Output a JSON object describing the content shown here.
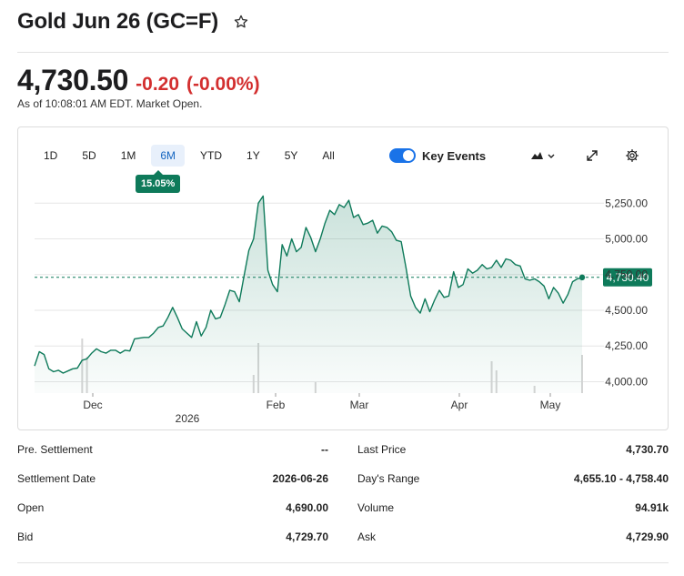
{
  "header": {
    "title": "Gold Jun 26 (GC=F)"
  },
  "quote": {
    "price": "4,730.50",
    "change": "-0.20",
    "change_pct": "(-0.00%)",
    "as_of": "As of 10:08:01 AM EDT. Market Open."
  },
  "chart": {
    "ranges": [
      "1D",
      "5D",
      "1M",
      "6M",
      "YTD",
      "1Y",
      "5Y",
      "All"
    ],
    "active_range": "6M",
    "performance_badge": "15.05%",
    "key_events_label": "Key Events",
    "key_events_on": true,
    "current_price_label": "4,730.40",
    "year_label": "2026",
    "colors": {
      "line": "#0e7a5a",
      "badge": "#0e7a5a",
      "toggle": "#1a73e8",
      "negative": "#d32f2f"
    }
  },
  "chart_data": {
    "type": "area",
    "title": "",
    "xlabel": "",
    "ylabel": "",
    "x_ticks": [
      "Dec",
      "Feb",
      "Mar",
      "Apr",
      "May"
    ],
    "y_ticks": [
      "5,250.00",
      "5,000.00",
      "4,750.00",
      "4,500.00",
      "4,250.00",
      "4,000.00"
    ],
    "ylim": [
      3920,
      5360
    ],
    "current_value": 4730.4,
    "series": [
      {
        "values": [
          4110,
          4210,
          4190,
          4090,
          4070,
          4080,
          4060,
          4075,
          4090,
          4095,
          4150,
          4160,
          4200,
          4230,
          4210,
          4200,
          4220,
          4220,
          4200,
          4220,
          4215,
          4300,
          4305,
          4310,
          4310,
          4340,
          4380,
          4390,
          4450,
          4520,
          4450,
          4370,
          4340,
          4310,
          4420,
          4320,
          4380,
          4500,
          4440,
          4450,
          4540,
          4640,
          4630,
          4560,
          4740,
          4920,
          5000,
          5250,
          5300,
          4780,
          4680,
          4630,
          4960,
          4880,
          5000,
          4910,
          4940,
          5080,
          5010,
          4910,
          5000,
          5110,
          5200,
          5170,
          5240,
          5220,
          5270,
          5150,
          5170,
          5100,
          5110,
          5130,
          5040,
          5090,
          5080,
          5050,
          4990,
          4980,
          4800,
          4600,
          4520,
          4480,
          4580,
          4490,
          4570,
          4640,
          4590,
          4600,
          4770,
          4660,
          4680,
          4790,
          4760,
          4780,
          4820,
          4790,
          4800,
          4850,
          4800,
          4860,
          4850,
          4820,
          4810,
          4720,
          4710,
          4720,
          4700,
          4670,
          4580,
          4660,
          4620,
          4550,
          4610,
          4700,
          4720,
          4730
        ]
      }
    ],
    "volume_label": "",
    "grid": true
  },
  "stats": {
    "left": [
      {
        "label": "Pre. Settlement",
        "value": "--"
      },
      {
        "label": "Settlement Date",
        "value": "2026-06-26"
      },
      {
        "label": "Open",
        "value": "4,690.00"
      },
      {
        "label": "Bid",
        "value": "4,729.70"
      }
    ],
    "right": [
      {
        "label": "Last Price",
        "value": "4,730.70"
      },
      {
        "label": "Day's Range",
        "value": "4,655.10 - 4,758.40"
      },
      {
        "label": "Volume",
        "value": "94.91k"
      },
      {
        "label": "Ask",
        "value": "4,729.90"
      }
    ]
  },
  "icons": {
    "favorite": "star-outline-icon",
    "chart_type": "mountain-chart-icon",
    "expand": "expand-icon",
    "settings": "gear-icon"
  }
}
